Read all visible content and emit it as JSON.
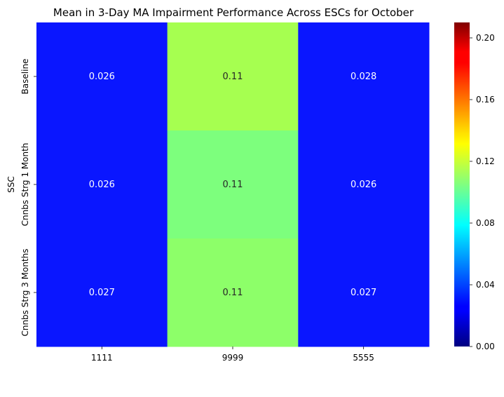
{
  "chart_data": {
    "type": "heatmap",
    "title": "Mean in 3-Day MA Impairment Performance Across ESCs for October",
    "xlabel": "",
    "ylabel": "SSC",
    "x_categories": [
      "1111",
      "9999",
      "5555"
    ],
    "y_categories": [
      "Baseline",
      "Cnnbs Strg 1 Month",
      "Cnnbs Strg 3 Months"
    ],
    "values": [
      [
        0.026,
        0.11,
        0.028
      ],
      [
        0.026,
        0.11,
        0.026
      ],
      [
        0.027,
        0.11,
        0.027
      ]
    ],
    "cell_colors": [
      [
        "#0a16ff",
        "#a6ff50",
        "#0a16ff"
      ],
      [
        "#0a16ff",
        "#7dff7d",
        "#0a16ff"
      ],
      [
        "#0a16ff",
        "#8dff69",
        "#0a16ff"
      ]
    ],
    "value_label_colors": [
      [
        "#ffffff",
        "#262626",
        "#ffffff"
      ],
      [
        "#ffffff",
        "#262626",
        "#ffffff"
      ],
      [
        "#ffffff",
        "#262626",
        "#ffffff"
      ]
    ],
    "annotation_labels": [
      [
        "0.026",
        "0.11",
        "0.028"
      ],
      [
        "0.026",
        "0.11",
        "0.026"
      ],
      [
        "0.027",
        "0.11",
        "0.027"
      ]
    ],
    "colorbar": {
      "colormap": "jet",
      "vmin": 0.0,
      "vmax": 0.21,
      "ticks": [
        0.0,
        0.04,
        0.08,
        0.12,
        0.16,
        0.2
      ],
      "tick_labels": [
        "0.00",
        "0.04",
        "0.08",
        "0.12",
        "0.16",
        "0.20"
      ]
    }
  }
}
